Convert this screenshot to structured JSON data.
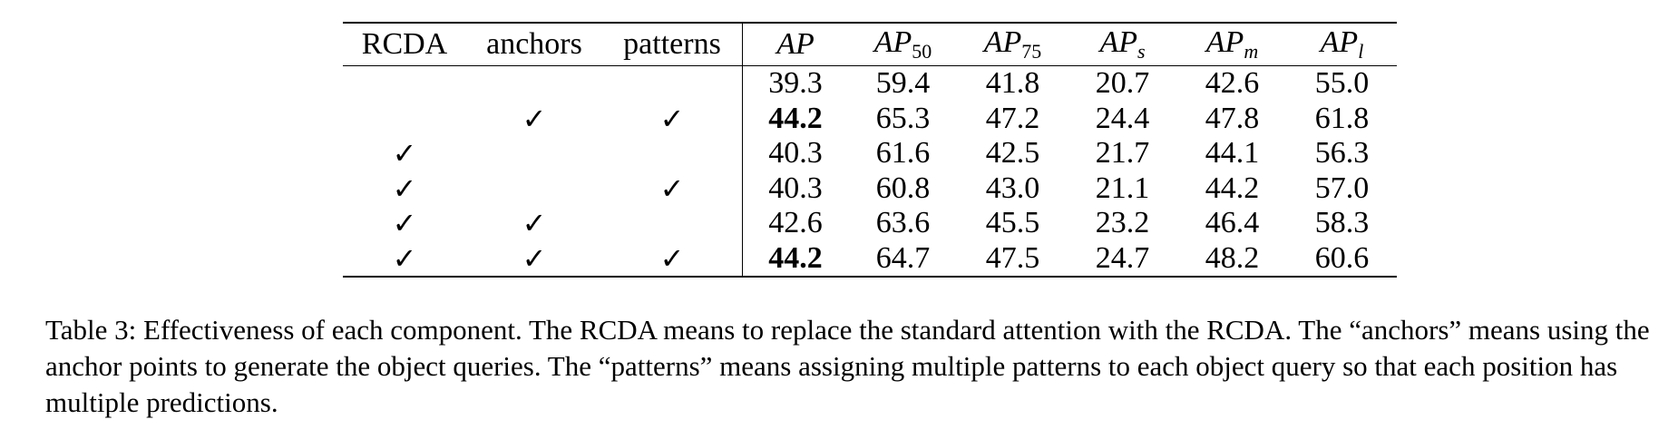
{
  "table": {
    "headers": {
      "rcda": "RCDA",
      "anchors": "anchors",
      "patterns": "patterns",
      "ap": {
        "main": "AP",
        "sub": ""
      },
      "ap50": {
        "main": "AP",
        "sub": "50"
      },
      "ap75": {
        "main": "AP",
        "sub": "75"
      },
      "aps": {
        "main": "AP",
        "sub": "s"
      },
      "apm": {
        "main": "AP",
        "sub": "m"
      },
      "apl": {
        "main": "AP",
        "sub": "l"
      }
    },
    "rows": [
      {
        "rcda": "",
        "anchors": "",
        "patterns": "",
        "ap": "39.3",
        "ap50": "59.4",
        "ap75": "41.8",
        "aps": "20.7",
        "apm": "42.6",
        "apl": "55.0"
      },
      {
        "rcda": "",
        "anchors": "✓",
        "patterns": "✓",
        "ap": "44.2",
        "ap50": "65.3",
        "ap75": "47.2",
        "aps": "24.4",
        "apm": "47.8",
        "apl": "61.8"
      },
      {
        "rcda": "✓",
        "anchors": "",
        "patterns": "",
        "ap": "40.3",
        "ap50": "61.6",
        "ap75": "42.5",
        "aps": "21.7",
        "apm": "44.1",
        "apl": "56.3"
      },
      {
        "rcda": "✓",
        "anchors": "",
        "patterns": "✓",
        "ap": "40.3",
        "ap50": "60.8",
        "ap75": "43.0",
        "aps": "21.1",
        "apm": "44.2",
        "apl": "57.0"
      },
      {
        "rcda": "✓",
        "anchors": "✓",
        "patterns": "",
        "ap": "42.6",
        "ap50": "63.6",
        "ap75": "45.5",
        "aps": "23.2",
        "apm": "46.4",
        "apl": "58.3"
      },
      {
        "rcda": "✓",
        "anchors": "✓",
        "patterns": "✓",
        "ap": "44.2",
        "ap50": "64.7",
        "ap75": "47.5",
        "aps": "24.7",
        "apm": "48.2",
        "apl": "60.6"
      }
    ]
  },
  "caption": "Table 3: Effectiveness of each component. The RCDA means to replace the standard attention with the RCDA. The “anchors” means using the anchor points to generate the object queries. The “patterns” means assigning multiple patterns to each object query so that each position has multiple predictions."
}
